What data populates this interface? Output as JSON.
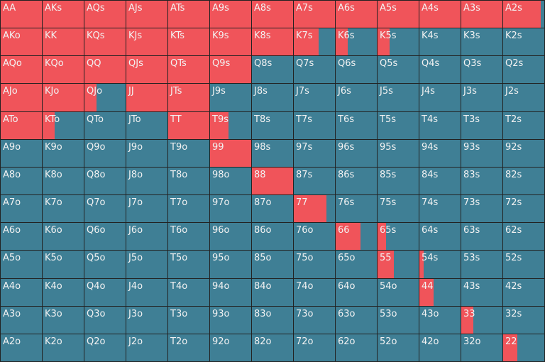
{
  "colors": {
    "raise": "#f0545a",
    "fold": "#3f7f95",
    "text": "#f2f2f2",
    "grid_line": "#222222"
  },
  "grid": {
    "columns": 13,
    "rows": [
      {
        "labels": [
          "AA",
          "AKs",
          "AQs",
          "AJs",
          "ATs",
          "A9s",
          "A8s",
          "A7s",
          "A6s",
          "A5s",
          "A4s",
          "A3s",
          "A2s"
        ],
        "raise_fractions": [
          1,
          1,
          1,
          1,
          1,
          1,
          1,
          1,
          1,
          1,
          1,
          1,
          0.92
        ]
      },
      {
        "labels": [
          "AKo",
          "KK",
          "KQs",
          "KJs",
          "KTs",
          "K9s",
          "K8s",
          "K7s",
          "K6s",
          "K5s",
          "K4s",
          "K3s",
          "K2s"
        ],
        "raise_fractions": [
          1,
          1,
          1,
          1,
          1,
          1,
          1,
          0.6,
          0.3,
          0.3,
          0,
          0,
          0
        ]
      },
      {
        "labels": [
          "AQo",
          "KQo",
          "QQ",
          "QJs",
          "QTs",
          "Q9s",
          "Q8s",
          "Q7s",
          "Q6s",
          "Q5s",
          "Q4s",
          "Q3s",
          "Q2s"
        ],
        "raise_fractions": [
          1,
          1,
          1,
          1,
          1,
          1,
          0,
          0,
          0,
          0,
          0,
          0,
          0
        ]
      },
      {
        "labels": [
          "AJo",
          "KJo",
          "QJo",
          "JJ",
          "JTs",
          "J9s",
          "J8s",
          "J7s",
          "J6s",
          "J5s",
          "J4s",
          "J3s",
          "J2s"
        ],
        "raise_fractions": [
          1,
          1,
          0.3,
          1,
          1,
          0,
          0,
          0,
          0,
          0,
          0,
          0,
          0
        ]
      },
      {
        "labels": [
          "ATo",
          "KTo",
          "QTo",
          "JTo",
          "TT",
          "T9s",
          "T8s",
          "T7s",
          "T6s",
          "T5s",
          "T4s",
          "T3s",
          "T2s"
        ],
        "raise_fractions": [
          1,
          0.3,
          0,
          0,
          1,
          0.45,
          0,
          0,
          0,
          0,
          0,
          0,
          0
        ]
      },
      {
        "labels": [
          "A9o",
          "K9o",
          "Q9o",
          "J9o",
          "T9o",
          "99",
          "98s",
          "97s",
          "96s",
          "95s",
          "94s",
          "93s",
          "92s"
        ],
        "raise_fractions": [
          0,
          0,
          0,
          0,
          0,
          1,
          0,
          0,
          0,
          0,
          0,
          0,
          0
        ]
      },
      {
        "labels": [
          "A8o",
          "K8o",
          "Q8o",
          "J8o",
          "T8o",
          "98o",
          "88",
          "87s",
          "86s",
          "85s",
          "84s",
          "83s",
          "82s"
        ],
        "raise_fractions": [
          0,
          0,
          0,
          0,
          0,
          0,
          1,
          0,
          0,
          0,
          0,
          0,
          0
        ]
      },
      {
        "labels": [
          "A7o",
          "K7o",
          "Q7o",
          "J7o",
          "T7o",
          "97o",
          "87o",
          "77",
          "76s",
          "75s",
          "74s",
          "73s",
          "72s"
        ],
        "raise_fractions": [
          0,
          0,
          0,
          0,
          0,
          0,
          0,
          0.8,
          0,
          0,
          0,
          0,
          0
        ]
      },
      {
        "labels": [
          "A6o",
          "K6o",
          "Q6o",
          "J6o",
          "T6o",
          "96o",
          "86o",
          "76o",
          "66",
          "65s",
          "64s",
          "63s",
          "62s"
        ],
        "raise_fractions": [
          0,
          0,
          0,
          0,
          0,
          0,
          0,
          0,
          0.6,
          0.2,
          0,
          0,
          0
        ]
      },
      {
        "labels": [
          "A5o",
          "K5o",
          "Q5o",
          "J5o",
          "T5o",
          "95o",
          "85o",
          "75o",
          "65o",
          "55",
          "54s",
          "53s",
          "52s"
        ],
        "raise_fractions": [
          0,
          0,
          0,
          0,
          0,
          0,
          0,
          0,
          0,
          0.4,
          0.1,
          0,
          0
        ]
      },
      {
        "labels": [
          "A4o",
          "K4o",
          "Q4o",
          "J4o",
          "T4o",
          "94o",
          "84o",
          "74o",
          "64o",
          "54o",
          "44",
          "43s",
          "42s"
        ],
        "raise_fractions": [
          0,
          0,
          0,
          0,
          0,
          0,
          0,
          0,
          0,
          0,
          0.35,
          0,
          0
        ]
      },
      {
        "labels": [
          "A3o",
          "K3o",
          "Q3o",
          "J3o",
          "T3o",
          "93o",
          "83o",
          "73o",
          "63o",
          "53o",
          "43o",
          "33",
          "32s"
        ],
        "raise_fractions": [
          0,
          0,
          0,
          0,
          0,
          0,
          0,
          0,
          0,
          0,
          0,
          0.3,
          0
        ]
      },
      {
        "labels": [
          "A2o",
          "K2o",
          "Q2o",
          "J2o",
          "T2o",
          "92o",
          "82o",
          "72o",
          "62o",
          "52o",
          "42o",
          "32o",
          "22"
        ],
        "raise_fractions": [
          0,
          0,
          0,
          0,
          0,
          0,
          0,
          0,
          0,
          0,
          0,
          0,
          0.35
        ]
      }
    ]
  }
}
